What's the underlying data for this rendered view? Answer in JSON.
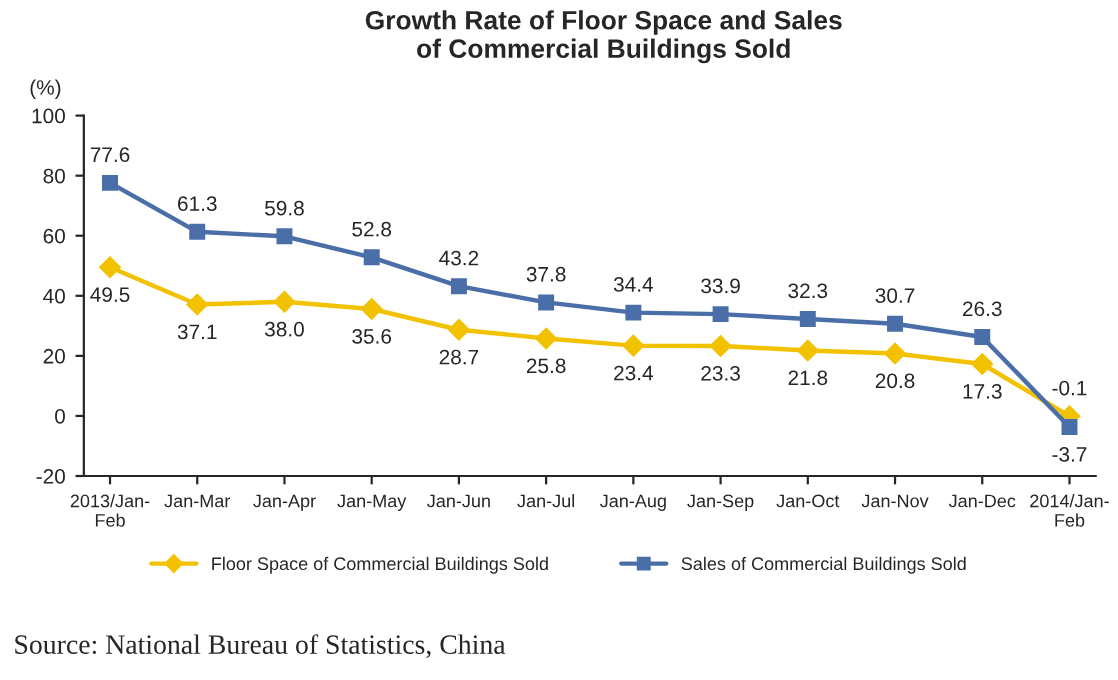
{
  "chart_data": {
    "type": "line",
    "title": "Growth Rate of Floor Space and Sales\nof Commercial Buildings Sold",
    "ylabel": "(%)",
    "categories": [
      "2013/Jan-Feb",
      "Jan-Mar",
      "Jan-Apr",
      "Jan-May",
      "Jan-Jun",
      "Jan-Jul",
      "Jan-Aug",
      "Jan-Sep",
      "Jan-Oct",
      "Jan-Nov",
      "Jan-Dec",
      "2014/Jan-Feb"
    ],
    "series": [
      {
        "name": "Floor Space of Commercial Buildings Sold",
        "color": "#f2c200",
        "marker": "diamond",
        "values": [
          49.5,
          37.1,
          38.0,
          35.6,
          28.7,
          25.8,
          23.4,
          23.3,
          21.8,
          20.8,
          17.3,
          -0.1
        ],
        "value_labels": [
          "49.5",
          "37.1",
          "38.0",
          "35.6",
          "28.7",
          "25.8",
          "23.4",
          "23.3",
          "21.8",
          "20.8",
          "17.3",
          "-0.1"
        ]
      },
      {
        "name": "Sales of Commercial Buildings Sold",
        "color": "#4a6ea8",
        "marker": "square",
        "values": [
          77.6,
          61.3,
          59.8,
          52.8,
          43.2,
          37.8,
          34.4,
          33.9,
          32.3,
          30.7,
          26.3,
          -3.7
        ],
        "value_labels": [
          "77.6",
          "61.3",
          "59.8",
          "52.8",
          "43.2",
          "37.8",
          "34.4",
          "33.9",
          "32.3",
          "30.7",
          "26.3",
          "-3.7"
        ]
      }
    ],
    "ylim": [
      -20,
      100
    ],
    "yticks": [
      -20,
      0,
      20,
      40,
      60,
      80,
      100
    ],
    "grid": false,
    "legend": "bottom",
    "annotations": [
      "Source: National Bureau of Statistics, China"
    ]
  }
}
